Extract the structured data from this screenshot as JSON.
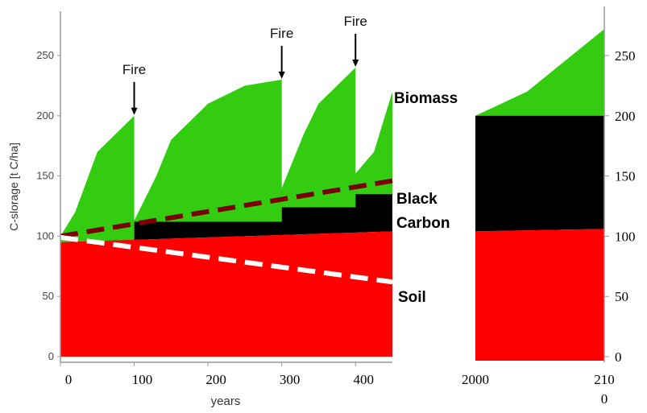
{
  "chart_data": [
    {
      "type": "area",
      "xlabel": "years",
      "ylabel": "C-slorage [t C/ha]",
      "xlim": [
        0,
        450
      ],
      "ylim": [
        0,
        280
      ],
      "x_ticks": [
        "0",
        "100",
        "200",
        "300",
        "400"
      ],
      "y_ticks": [
        "0",
        "50",
        "100",
        "150",
        "200",
        "250"
      ],
      "fire_label": "Fire",
      "fire_years": [
        100,
        300,
        400
      ],
      "component_labels": {
        "biomass": "Biomass",
        "black_carbon_1": "Black",
        "black_carbon_2": "Carbon",
        "soil": "Soil"
      },
      "colors": {
        "biomass": "#33cc11",
        "black_carbon": "#000000",
        "soil": "#ff0000",
        "trend_black_carbon": "#7a0000",
        "trend_soil": "#ffffff"
      },
      "series": [
        {
          "name": "Soil",
          "points": [
            [
              0,
              95
            ],
            [
              450,
              104
            ]
          ]
        },
        {
          "name": "Black Carbon",
          "points": [
            [
              0,
              95
            ],
            [
              100,
              96
            ],
            [
              100,
              112
            ],
            [
              300,
              112
            ],
            [
              300,
              124
            ],
            [
              400,
              124
            ],
            [
              400,
              135
            ],
            [
              450,
              135
            ]
          ]
        },
        {
          "name": "Biomass",
          "points": [
            [
              0,
              100
            ],
            [
              20,
              120
            ],
            [
              50,
              170
            ],
            [
              75,
              185
            ],
            [
              100,
              200
            ],
            [
              100,
              113
            ],
            [
              130,
              150
            ],
            [
              150,
              180
            ],
            [
              200,
              210
            ],
            [
              250,
              225
            ],
            [
              300,
              230
            ],
            [
              300,
              140
            ],
            [
              330,
              185
            ],
            [
              350,
              210
            ],
            [
              400,
              240
            ],
            [
              400,
              152
            ],
            [
              425,
              170
            ],
            [
              450,
              220
            ]
          ]
        }
      ],
      "trends": [
        {
          "points": [
            [
              0,
              100
            ],
            [
              450,
              146
            ]
          ]
        },
        {
          "points": [
            [
              0,
              99
            ],
            [
              450,
              62
            ]
          ]
        }
      ]
    },
    {
      "type": "area",
      "x_ticks": [
        "2000",
        "210\n0"
      ],
      "xlim": [
        2000,
        2100
      ],
      "ylim": [
        0,
        280
      ],
      "y_ticks": [
        "0",
        "50",
        "100",
        "150",
        "200",
        "250"
      ],
      "series": [
        {
          "name": "Soil",
          "points": [
            [
              2000,
              104
            ],
            [
              2100,
              106
            ]
          ]
        },
        {
          "name": "Black Carbon",
          "points": [
            [
              2000,
              200
            ],
            [
              2100,
              200
            ]
          ]
        },
        {
          "name": "Biomass",
          "points": [
            [
              2000,
              200
            ],
            [
              2040,
              220
            ],
            [
              2100,
              272
            ]
          ]
        }
      ]
    }
  ]
}
